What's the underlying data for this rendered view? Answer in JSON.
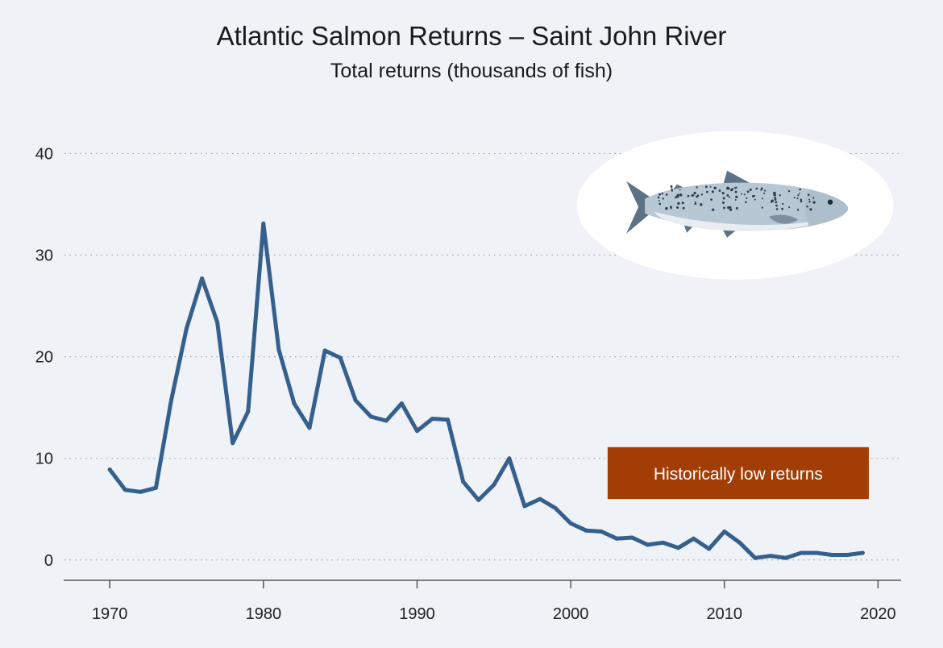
{
  "chart_data": {
    "type": "line",
    "title": "Atlantic Salmon Returns – Saint John River",
    "subtitle": "Total returns (thousands of fish)",
    "xlabel": "",
    "ylabel": "",
    "xlim": [
      1967,
      2021.5
    ],
    "ylim": [
      -2,
      44
    ],
    "x_ticks": [
      1970,
      1980,
      1990,
      2000,
      2010,
      2020
    ],
    "y_ticks": [
      0,
      10,
      20,
      30,
      40
    ],
    "grid": "horizontal-dotted",
    "series": [
      {
        "color": "#355f8c",
        "x": [
          1970,
          1971,
          1972,
          1973,
          1974,
          1975,
          1976,
          1977,
          1978,
          1979,
          1980,
          1981,
          1982,
          1983,
          1984,
          1985,
          1986,
          1987,
          1988,
          1989,
          1990,
          1991,
          1992,
          1993,
          1994,
          1995,
          1996,
          1997,
          1998,
          1999,
          2000,
          2001,
          2002,
          2003,
          2004,
          2005,
          2006,
          2007,
          2008,
          2009,
          2010,
          2011,
          2012,
          2013,
          2014,
          2015,
          2016,
          2017,
          2018,
          2019
        ],
        "y": [
          8.9,
          6.9,
          6.7,
          7.1,
          15.7,
          22.8,
          27.7,
          23.4,
          11.5,
          14.6,
          33.1,
          20.7,
          15.4,
          13.0,
          20.6,
          19.9,
          15.7,
          14.1,
          13.7,
          15.4,
          12.7,
          13.9,
          13.8,
          7.7,
          5.9,
          7.4,
          10.0,
          5.3,
          6.0,
          5.1,
          3.6,
          2.9,
          2.8,
          2.1,
          2.2,
          1.5,
          1.7,
          1.2,
          2.1,
          1.1,
          2.8,
          1.7,
          0.2,
          0.4,
          0.2,
          0.7,
          0.7,
          0.5,
          0.5,
          0.7
        ]
      }
    ],
    "annotation": {
      "text": "Historically low returns",
      "color": "#a23d05",
      "x_range": [
        2002.4,
        2019.4
      ],
      "y_range": [
        6.0,
        11.1
      ]
    },
    "image": {
      "icon": "salmon-icon",
      "x_range": [
        2000.4,
        2021.0
      ],
      "y_range": [
        27.6,
        42.2
      ]
    }
  }
}
